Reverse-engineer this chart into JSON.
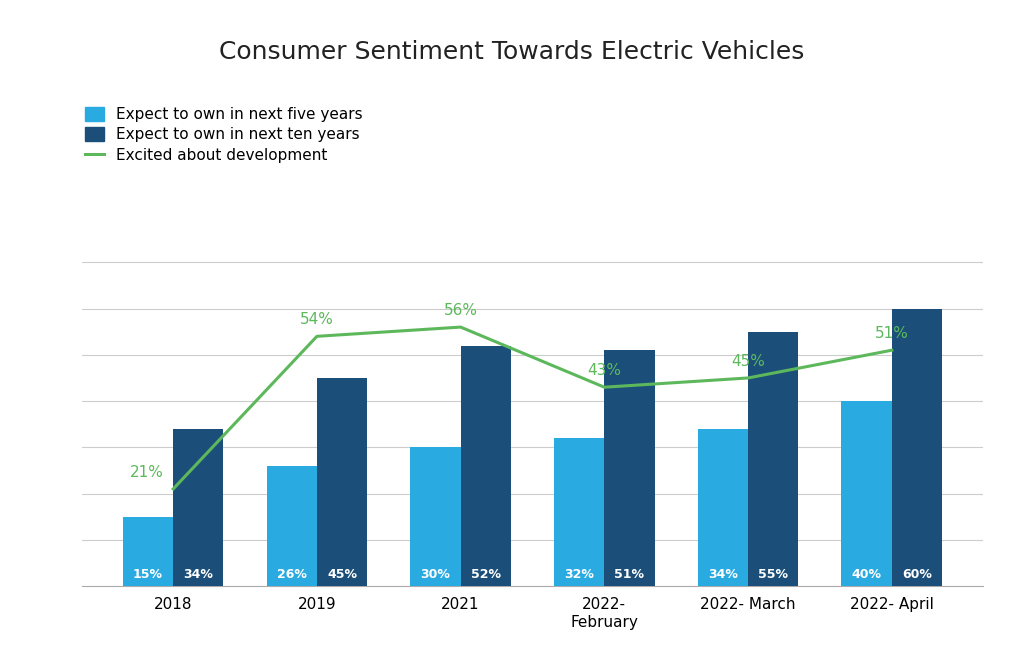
{
  "title": "Consumer Sentiment Towards Electric Vehicles",
  "categories": [
    "2018",
    "2019",
    "2021",
    "2022-\nFebruary",
    "2022- March",
    "2022- April"
  ],
  "five_year": [
    15,
    26,
    30,
    32,
    34,
    40
  ],
  "ten_year": [
    34,
    45,
    52,
    51,
    55,
    60
  ],
  "excited": [
    21,
    54,
    56,
    43,
    45,
    51
  ],
  "five_year_labels": [
    "15%",
    "26%",
    "30%",
    "32%",
    "34%",
    "40%"
  ],
  "ten_year_labels": [
    "34%",
    "45%",
    "52%",
    "51%",
    "55%",
    "60%"
  ],
  "excited_labels": [
    "21%",
    "54%",
    "56%",
    "43%",
    "45%",
    "51%"
  ],
  "color_five_year": "#29ABE2",
  "color_ten_year": "#1B4F7A",
  "color_excited": "#5DB85C",
  "legend_five": "Expect to own in next five years",
  "legend_ten": "Expect to own in next ten years",
  "legend_excited": "Excited about development",
  "bar_width": 0.35,
  "ylim": [
    0,
    72
  ],
  "background_color": "#ffffff",
  "title_fontsize": 18,
  "label_fontsize": 9,
  "tick_fontsize": 11,
  "legend_fontsize": 11,
  "excited_label_offsets_x": [
    -0.18,
    0.0,
    0.0,
    0.0,
    0.0,
    0.0
  ],
  "excited_label_offsets_y": [
    2,
    2,
    2,
    2,
    2,
    2
  ]
}
